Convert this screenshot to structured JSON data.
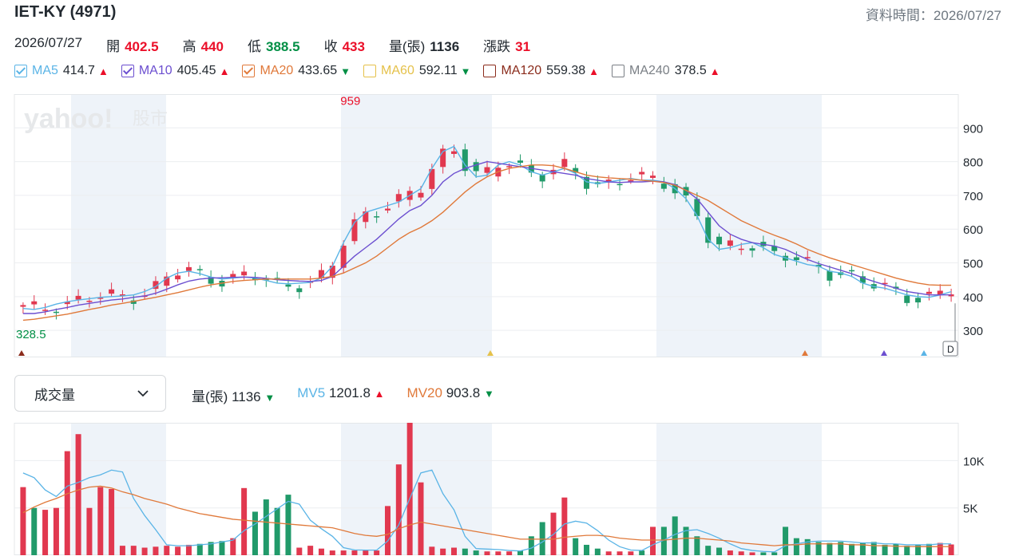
{
  "header": {
    "title": "IET-KY (4971)",
    "updated_label": "資料時間：2026/07/27"
  },
  "quote": {
    "date": "2026/07/27",
    "open_label": "開",
    "open_value": "402.5",
    "high_label": "高",
    "high_value": "440",
    "low_label": "低",
    "low_value": "388.5",
    "close_label": "收",
    "close_value": "433",
    "volume_label": "量(張)",
    "volume_value": "1136",
    "change_label": "漲跌",
    "change_value": "31"
  },
  "ma_legend": [
    {
      "name": "MA5",
      "value": "414.7",
      "color": "#5ab4e6",
      "checked": true,
      "trend": "up"
    },
    {
      "name": "MA10",
      "value": "405.45",
      "color": "#6c4fd0",
      "checked": true,
      "trend": "up"
    },
    {
      "name": "MA20",
      "value": "433.65",
      "color": "#e0793a",
      "checked": true,
      "trend": "down"
    },
    {
      "name": "MA60",
      "value": "592.11",
      "color": "#e5c14a",
      "checked": false,
      "trend": "down"
    },
    {
      "name": "MA120",
      "value": "559.38",
      "color": "#8b2c1c",
      "checked": false,
      "trend": "up"
    },
    {
      "name": "MA240",
      "value": "378.5",
      "color": "#7a7f85",
      "checked": false,
      "trend": "up"
    }
  ],
  "watermark": {
    "logo_text": "yahoo!",
    "section_text": "股市"
  },
  "volume_panel": {
    "selector_label": "成交量",
    "volume_label": "量(張)",
    "volume_value": "1136",
    "volume_trend": "down",
    "mv5_label": "MV5",
    "mv5_value": "1201.8",
    "mv5_trend": "up",
    "mv20_label": "MV20",
    "mv20_value": "903.8",
    "mv20_trend": "down"
  },
  "colors": {
    "up": "#eb0f29",
    "down": "#008f45",
    "candle_up": "#e1384f",
    "candle_down": "#219a6a",
    "ma5": "#5ab4e6",
    "ma10": "#6c4fd0",
    "ma20": "#e0793a",
    "band": "#eef3f9"
  },
  "chart_data": [
    {
      "type": "candlestick",
      "y_ticks": [
        "900",
        "800",
        "700",
        "600",
        "500",
        "400",
        "300"
      ],
      "ylim": [
        220,
        1000
      ],
      "max_label": "959",
      "min_label": "328.5",
      "last_marker_label": "D",
      "series": [
        {
          "name": "MA5",
          "values": [
            365,
            362,
            368,
            378,
            385,
            390,
            394,
            398,
            400,
            402,
            405,
            415,
            430,
            455,
            470,
            475,
            468,
            458,
            452,
            455,
            458,
            455,
            448,
            440,
            438,
            440,
            442,
            455,
            490,
            560,
            620,
            650,
            660,
            670,
            680,
            700,
            720,
            780,
            830,
            845,
            790,
            755,
            760,
            790,
            800,
            790,
            770,
            760,
            770,
            780,
            765,
            740,
            735,
            740,
            745,
            750,
            745,
            745,
            740,
            720,
            690,
            640,
            570,
            540,
            545,
            555,
            560,
            545,
            525,
            515,
            505,
            495,
            490,
            475,
            470,
            460,
            440,
            430,
            425,
            415,
            405,
            400,
            398,
            405,
            414.7
          ]
        },
        {
          "name": "MA10",
          "values": [
            350,
            350,
            355,
            362,
            368,
            375,
            380,
            385,
            390,
            393,
            398,
            402,
            410,
            422,
            435,
            446,
            452,
            455,
            456,
            457,
            458,
            457,
            454,
            450,
            448,
            446,
            445,
            448,
            460,
            490,
            520,
            545,
            570,
            600,
            630,
            655,
            670,
            700,
            740,
            765,
            780,
            790,
            800,
            795,
            790,
            785,
            780,
            775,
            770,
            765,
            760,
            750,
            745,
            740,
            738,
            740,
            740,
            742,
            740,
            732,
            715,
            690,
            650,
            610,
            585,
            570,
            560,
            555,
            550,
            540,
            525,
            510,
            498,
            488,
            478,
            468,
            456,
            445,
            435,
            425,
            415,
            410,
            405,
            405,
            405.45
          ]
        },
        {
          "name": "MA20",
          "values": [
            330,
            333,
            338,
            343,
            348,
            355,
            362,
            368,
            375,
            380,
            386,
            392,
            398,
            405,
            412,
            420,
            428,
            435,
            440,
            445,
            448,
            450,
            452,
            452,
            452,
            452,
            452,
            455,
            460,
            470,
            485,
            500,
            520,
            545,
            570,
            590,
            605,
            625,
            650,
            680,
            710,
            735,
            755,
            770,
            780,
            785,
            790,
            790,
            788,
            780,
            770,
            760,
            755,
            752,
            750,
            748,
            745,
            742,
            738,
            730,
            715,
            700,
            685,
            665,
            645,
            625,
            610,
            595,
            582,
            570,
            556,
            540,
            527,
            515,
            505,
            495,
            485,
            475,
            465,
            455,
            447,
            440,
            435,
            433.65,
            433.65
          ]
        }
      ]
    },
    {
      "type": "bar",
      "y_ticks": [
        "10K",
        "5K"
      ],
      "ylim": [
        0,
        14000
      ],
      "series": [
        {
          "name": "量(張)",
          "values": [
            7200,
            5000,
            4800,
            5000,
            11000,
            12800,
            5000,
            7200,
            7000,
            1000,
            1000,
            800,
            900,
            1000,
            900,
            1100,
            1200,
            1400,
            1500,
            1800,
            7100,
            4600,
            5900,
            5000,
            6400,
            800,
            1000,
            700,
            500,
            500,
            500,
            500,
            500,
            5200,
            9600,
            14200,
            7700,
            900,
            700,
            800,
            700,
            500,
            400,
            400,
            400,
            500,
            2000,
            3500,
            4500,
            6100,
            1800,
            1100,
            700,
            400,
            400,
            400,
            500,
            3000,
            3000,
            4100,
            3000,
            2000,
            1000,
            800,
            500,
            400,
            300,
            300,
            300,
            3000,
            1800,
            1700,
            1400,
            1300,
            1400,
            1200,
            1300,
            1400,
            1100,
            1200,
            1000,
            1100,
            1200,
            1300,
            1136
          ]
        },
        {
          "name": "MV5",
          "values": [
            8700,
            8200,
            6900,
            6200,
            7300,
            7700,
            8200,
            8500,
            9000,
            8800,
            6000,
            4200,
            2700,
            1100,
            1000,
            1000,
            1100,
            1200,
            1400,
            1600,
            2600,
            3300,
            4100,
            4900,
            5700,
            5400,
            3700,
            2800,
            2000,
            800,
            560,
            540,
            540,
            1500,
            3200,
            6000,
            8700,
            9000,
            6500,
            4800,
            2000,
            700,
            650,
            600,
            500,
            450,
            750,
            1400,
            2200,
            3300,
            3600,
            3400,
            2600,
            1600,
            900,
            550,
            500,
            1100,
            1600,
            2200,
            2600,
            2700,
            2300,
            1800,
            1200,
            700,
            500,
            400,
            350,
            1000,
            1200,
            1400,
            1500,
            1500,
            1500,
            1400,
            1300,
            1300,
            1200,
            1200,
            1100,
            1100,
            1100,
            1200,
            1201.8
          ]
        },
        {
          "name": "MV20",
          "values": [
            4500,
            5100,
            5600,
            6000,
            6500,
            6900,
            7200,
            7300,
            7100,
            6700,
            6400,
            6000,
            5700,
            5400,
            5000,
            4700,
            4400,
            4200,
            4000,
            3800,
            3700,
            3600,
            3500,
            3400,
            3300,
            3200,
            3100,
            3000,
            2900,
            2600,
            2300,
            2100,
            2000,
            2200,
            2800,
            3200,
            3500,
            3300,
            3100,
            2900,
            2700,
            2500,
            2300,
            2100,
            1900,
            1700,
            1700,
            1700,
            1700,
            1900,
            2000,
            2100,
            2100,
            2000,
            1800,
            1700,
            1600,
            1600,
            1600,
            1700,
            1800,
            1800,
            1700,
            1600,
            1500,
            1300,
            1200,
            1100,
            1000,
            1100,
            1100,
            1200,
            1200,
            1200,
            1200,
            1100,
            1100,
            1000,
            1000,
            950,
            930,
            910,
            900,
            903.8,
            903.8
          ]
        }
      ]
    }
  ]
}
